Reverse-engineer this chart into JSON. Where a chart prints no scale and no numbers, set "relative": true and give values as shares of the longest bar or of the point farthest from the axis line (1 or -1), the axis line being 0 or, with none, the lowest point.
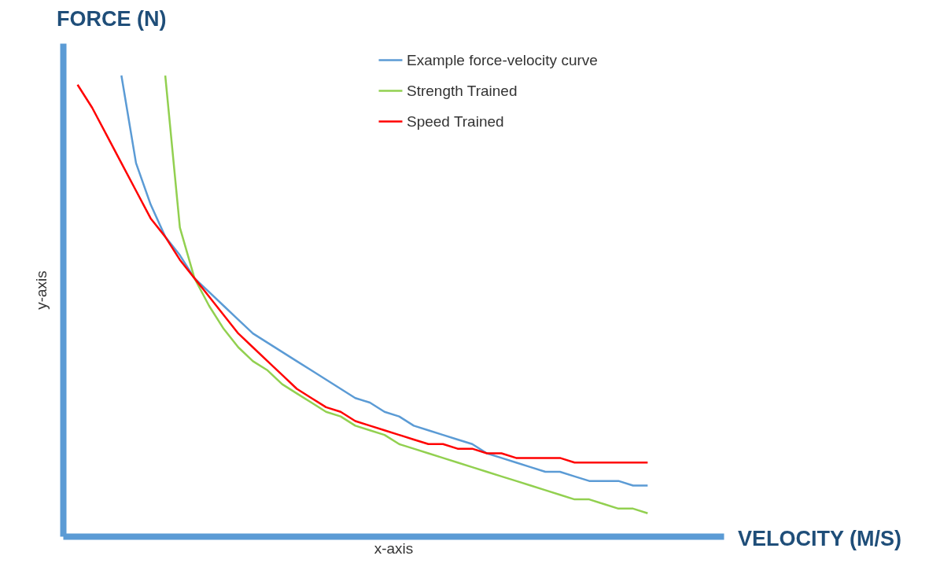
{
  "chart_data": {
    "type": "line",
    "relative": true,
    "xlabel": "x-axis",
    "ylabel": "y-axis",
    "annotations": [
      "FORCE (N)",
      "VELOCITY (M/S)"
    ],
    "legend": "top right",
    "grid": false,
    "tick_labels": false,
    "line_style": "solid",
    "categories": [
      null,
      null,
      null,
      null,
      null,
      null,
      null,
      null,
      null,
      null,
      null,
      null,
      null,
      null,
      null,
      null,
      null,
      null,
      null,
      null,
      null,
      null,
      null,
      null,
      null,
      null,
      null,
      null,
      null,
      null,
      null,
      null,
      null,
      null,
      null,
      null,
      null,
      null,
      null,
      null,
      null
    ],
    "series": [
      {
        "name": "Example force-velocity curve",
        "color": "#5b9bd5",
        "values": [
          null,
          null,
          null,
          null,
          1.0,
          0.81,
          0.72,
          0.65,
          0.61,
          0.56,
          0.53,
          0.5,
          0.47,
          0.44,
          0.42,
          0.4,
          0.38,
          0.36,
          0.34,
          0.32,
          0.3,
          0.29,
          0.27,
          0.26,
          0.24,
          0.23,
          0.22,
          0.21,
          0.2,
          0.18,
          0.17,
          0.16,
          0.15,
          0.14,
          0.14,
          0.13,
          0.12,
          0.12,
          0.12,
          0.11,
          0.11
        ]
      },
      {
        "name": "Strength Trained",
        "color": "#92d050",
        "values": [
          null,
          null,
          null,
          null,
          null,
          null,
          null,
          1.0,
          0.67,
          0.56,
          0.5,
          0.45,
          0.41,
          0.38,
          0.36,
          0.33,
          0.31,
          0.29,
          0.27,
          0.26,
          0.24,
          0.23,
          0.22,
          0.2,
          0.19,
          0.18,
          0.17,
          0.16,
          0.15,
          0.14,
          0.13,
          0.12,
          0.11,
          0.1,
          0.09,
          0.08,
          0.08,
          0.07,
          0.06,
          0.06,
          0.05
        ]
      },
      {
        "name": "Speed Trained",
        "color": "#ff0000",
        "values": [
          null,
          0.98,
          0.93,
          0.87,
          0.81,
          0.75,
          0.69,
          0.65,
          0.6,
          0.56,
          0.52,
          0.48,
          0.44,
          0.41,
          0.38,
          0.35,
          0.32,
          0.3,
          0.28,
          0.27,
          0.25,
          0.24,
          0.23,
          0.22,
          0.21,
          0.2,
          0.2,
          0.19,
          0.19,
          0.18,
          0.18,
          0.17,
          0.17,
          0.17,
          0.17,
          0.16,
          0.16,
          0.16,
          0.16,
          0.16,
          0.16
        ]
      }
    ]
  }
}
